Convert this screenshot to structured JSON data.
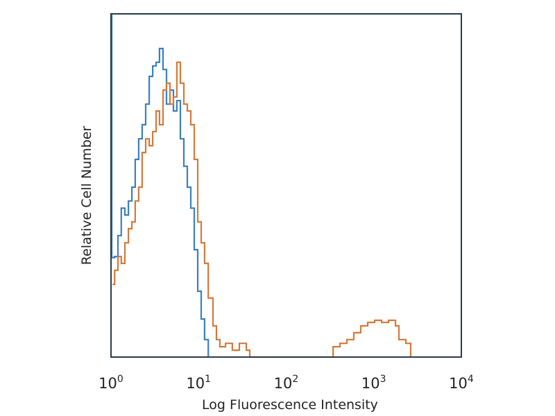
{
  "chart_data": {
    "type": "line",
    "title": "",
    "xlabel": "Log Fluorescence Intensity",
    "ylabel": "Relative Cell Number",
    "xscale": "log",
    "xlim": [
      1,
      10000
    ],
    "ylim": [
      0,
      100
    ],
    "grid": false,
    "x_ticks": [
      {
        "base": "10",
        "exp": "0"
      },
      {
        "base": "10",
        "exp": "1"
      },
      {
        "base": "10",
        "exp": "2"
      },
      {
        "base": "10",
        "exp": "3"
      },
      {
        "base": "10",
        "exp": "4"
      }
    ],
    "series": [
      {
        "color": "#3a7fc0",
        "points": [
          [
            1.0,
            100
          ],
          [
            1.02,
            29
          ],
          [
            1.1,
            29.3
          ],
          [
            1.2,
            35.4
          ],
          [
            1.31,
            43.4
          ],
          [
            1.44,
            41.4
          ],
          [
            1.58,
            45.5
          ],
          [
            1.73,
            49.5
          ],
          [
            1.89,
            57.6
          ],
          [
            2.07,
            63.6
          ],
          [
            2.27,
            67.7
          ],
          [
            2.49,
            73.7
          ],
          [
            2.73,
            81.8
          ],
          [
            2.99,
            84.8
          ],
          [
            3.27,
            85.9
          ],
          [
            3.58,
            89.9
          ],
          [
            3.93,
            83.8
          ],
          [
            4.3,
            73.7
          ],
          [
            4.71,
            77.8
          ],
          [
            5.16,
            71.7
          ],
          [
            5.65,
            74.7
          ],
          [
            6.19,
            63.6
          ],
          [
            6.79,
            55.6
          ],
          [
            7.43,
            49.5
          ],
          [
            8.15,
            43.4
          ],
          [
            8.92,
            31.3
          ],
          [
            9.78,
            19.2
          ],
          [
            10.7,
            11.1
          ],
          [
            11.7,
            5.1
          ],
          [
            12.9,
            0
          ]
        ]
      },
      {
        "color": "#d4793a",
        "points": [
          [
            1.04,
            21.2
          ],
          [
            1.1,
            25.3
          ],
          [
            1.2,
            29.3
          ],
          [
            1.31,
            27.3
          ],
          [
            1.44,
            33.3
          ],
          [
            1.58,
            37.4
          ],
          [
            1.73,
            39.4
          ],
          [
            1.89,
            45.5
          ],
          [
            2.07,
            49.5
          ],
          [
            2.27,
            59.6
          ],
          [
            2.49,
            63.6
          ],
          [
            2.73,
            61.6
          ],
          [
            2.99,
            65.7
          ],
          [
            3.27,
            71.7
          ],
          [
            3.58,
            67.7
          ],
          [
            3.93,
            77.8
          ],
          [
            4.3,
            79.8
          ],
          [
            4.71,
            73.7
          ],
          [
            5.16,
            75.8
          ],
          [
            5.65,
            85.9
          ],
          [
            6.19,
            79.8
          ],
          [
            6.79,
            73.7
          ],
          [
            7.43,
            71.7
          ],
          [
            8.15,
            67.7
          ],
          [
            8.92,
            57.6
          ],
          [
            9.78,
            39.4
          ],
          [
            10.7,
            33.3
          ],
          [
            11.7,
            27.3
          ],
          [
            12.9,
            17.2
          ],
          [
            14.6,
            9.1
          ],
          [
            16.0,
            5.1
          ],
          [
            17.5,
            3.0
          ],
          [
            20.3,
            4.0
          ],
          [
            24.3,
            2.0
          ],
          [
            29.2,
            4.0
          ],
          [
            35.1,
            2.0
          ],
          [
            38.4,
            0
          ],
          [
            313,
            0
          ],
          [
            343,
            3.0
          ],
          [
            411,
            4.0
          ],
          [
            493,
            5.1
          ],
          [
            592,
            7.1
          ],
          [
            710,
            9.1
          ],
          [
            853,
            10.1
          ],
          [
            1023,
            10.7
          ],
          [
            1227,
            10.1
          ],
          [
            1473,
            10.7
          ],
          [
            1770,
            9.1
          ],
          [
            1937,
            5.1
          ],
          [
            2323,
            4.0
          ],
          [
            2640,
            0
          ]
        ]
      }
    ]
  }
}
